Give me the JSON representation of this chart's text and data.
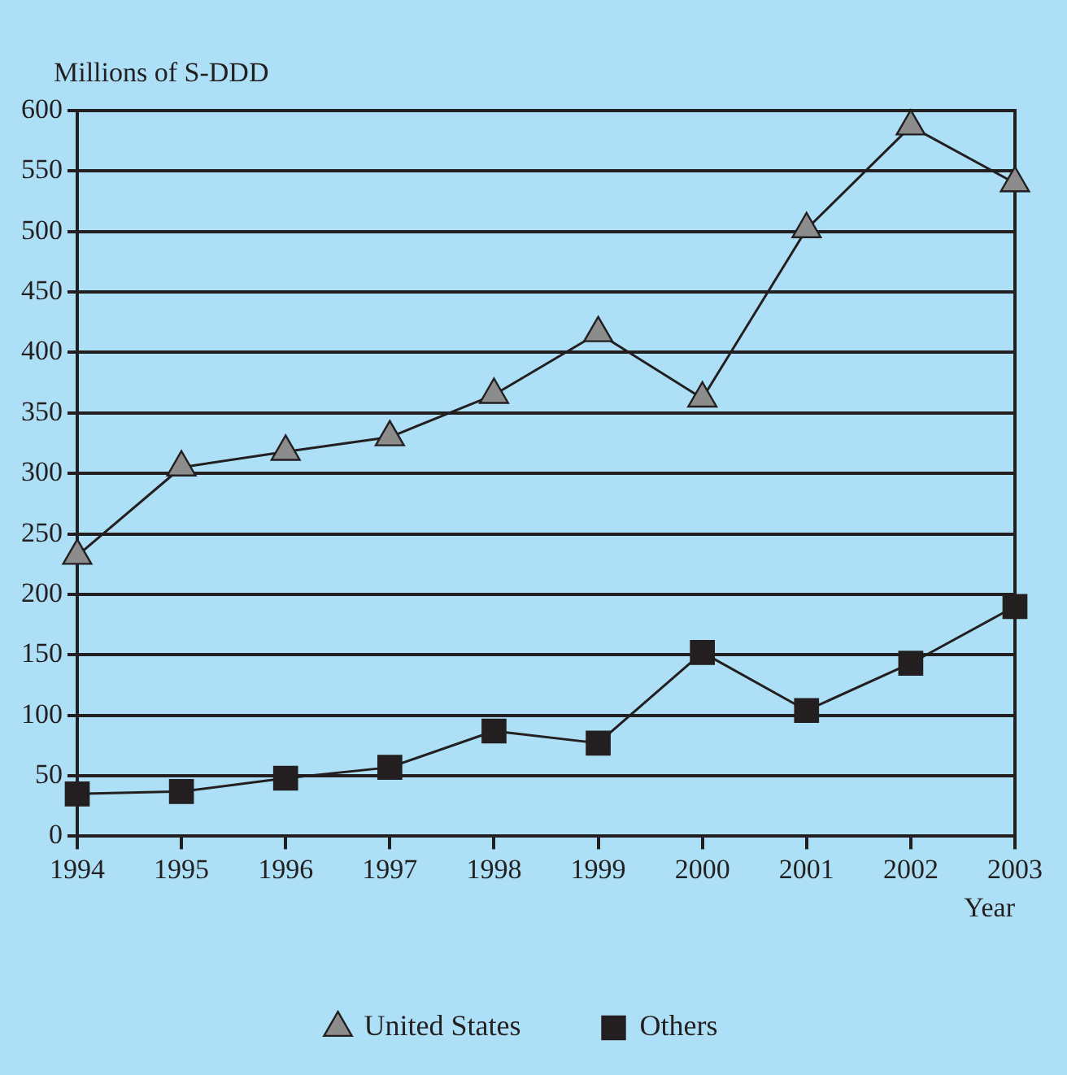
{
  "chart_data": {
    "type": "line",
    "ylabel": "Millions of S-DDD",
    "xlabel": "Year",
    "x": [
      1994,
      1995,
      1996,
      1997,
      1998,
      1999,
      2000,
      2001,
      2002,
      2003
    ],
    "xlim": [
      1994,
      2003
    ],
    "xticks": [
      1994,
      1995,
      1996,
      1997,
      1998,
      1999,
      2000,
      2001,
      2002,
      2003
    ],
    "ylim": [
      0,
      600
    ],
    "yticks": [
      0,
      50,
      100,
      150,
      200,
      250,
      300,
      350,
      400,
      450,
      500,
      550,
      600
    ],
    "grid": "y",
    "legend": "bottom",
    "line_style": "solid",
    "series": [
      {
        "name": "United States",
        "color": "#8c8c8c",
        "marker": "triangle",
        "values": [
          232,
          305,
          318,
          330,
          365,
          416,
          362,
          502,
          587,
          540
        ]
      },
      {
        "name": "Others",
        "color": "#231f20",
        "marker": "square",
        "values": [
          35,
          37,
          48,
          57,
          87,
          77,
          152,
          104,
          143,
          190
        ]
      }
    ]
  }
}
